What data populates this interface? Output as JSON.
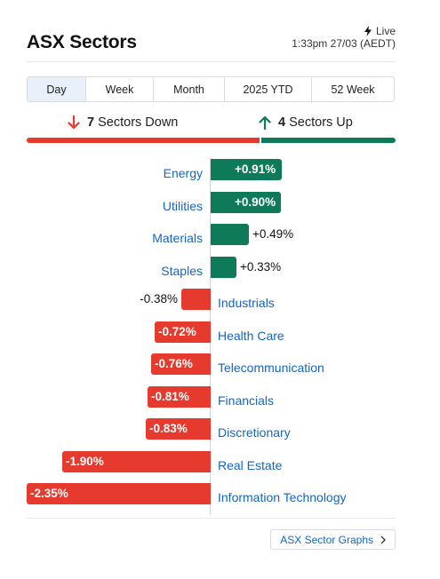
{
  "header": {
    "title": "ASX Sectors",
    "live_label": "Live",
    "timestamp": "1:33pm 27/03 (AEDT)"
  },
  "tabs": [
    {
      "label": "Day",
      "active": true
    },
    {
      "label": "Week",
      "active": false
    },
    {
      "label": "Month",
      "active": false
    },
    {
      "label": "2025 YTD",
      "active": false
    },
    {
      "label": "52 Week",
      "active": false
    }
  ],
  "summary": {
    "down_count": "7",
    "down_label": "Sectors Down",
    "up_count": "4",
    "up_label": "Sectors Up",
    "down_color": "#e63a2e",
    "up_color": "#0f7a5a"
  },
  "chart_data": {
    "type": "bar",
    "orientation": "horizontal-diverging",
    "categories": [
      "Energy",
      "Utilities",
      "Materials",
      "Staples",
      "Industrials",
      "Health Care",
      "Telecommunication",
      "Financials",
      "Discretionary",
      "Real Estate",
      "Information Technology"
    ],
    "values": [
      0.91,
      0.9,
      0.49,
      0.33,
      -0.38,
      -0.72,
      -0.76,
      -0.81,
      -0.83,
      -1.9,
      -2.35
    ],
    "labels": [
      "+0.91%",
      "+0.90%",
      "+0.49%",
      "+0.33%",
      "-0.38%",
      "-0.72%",
      "-0.76%",
      "-0.81%",
      "-0.83%",
      "-1.90%",
      "-2.35%"
    ],
    "positive_color": "#0f7a5a",
    "negative_color": "#e63a2e",
    "xlim": [
      -2.35,
      0.91
    ]
  },
  "footer": {
    "graphs_button_label": "ASX Sector Graphs"
  }
}
